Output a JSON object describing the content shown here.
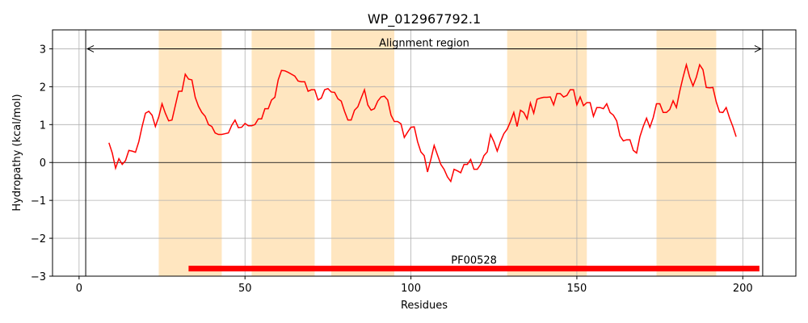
{
  "chart_data": {
    "type": "line",
    "title": "WP_012967792.1",
    "xlabel": "Residues",
    "ylabel": "Hydropathy (kcal/mol)",
    "xlim": [
      -8,
      216
    ],
    "ylim": [
      -3,
      3.5
    ],
    "x_ticks": [
      0,
      50,
      100,
      150,
      200
    ],
    "y_ticks": [
      -3,
      -2,
      -1,
      0,
      1,
      2,
      3
    ],
    "x_tick_labels": [
      "0",
      "50",
      "100",
      "150",
      "200"
    ],
    "y_tick_labels": [
      "−3",
      "−2",
      "−1",
      "0",
      "1",
      "2",
      "3"
    ],
    "grid": true,
    "colors": {
      "line": "#ff0000",
      "shade": "#ffe6c0",
      "domain_bar": "#ff0000",
      "grid": "#b0b0b0",
      "axis": "#000000"
    },
    "shaded_regions": [
      [
        24,
        43
      ],
      [
        52,
        71
      ],
      [
        76,
        95
      ],
      [
        129,
        153
      ],
      [
        174,
        192
      ]
    ],
    "alignment_region": {
      "label": "Alignment region",
      "start": 2,
      "end": 206,
      "y": 3.0
    },
    "domain": {
      "label": "PF00528",
      "start": 33,
      "end": 205,
      "y": -2.8
    },
    "series": [
      {
        "x": [
          9,
          10,
          11,
          12,
          13,
          14,
          15,
          16,
          17,
          18,
          19,
          20,
          21,
          22,
          23,
          24,
          25,
          26,
          27,
          28,
          29,
          30,
          31,
          32,
          33,
          34,
          35,
          36,
          37,
          38,
          39,
          40,
          41,
          42,
          43,
          44,
          45,
          46,
          47,
          48,
          49,
          50,
          51,
          52,
          53,
          54,
          55,
          56,
          57,
          58,
          59,
          60,
          61,
          62,
          63,
          64,
          65,
          66,
          67,
          68,
          69,
          70,
          71,
          72,
          73,
          74,
          75,
          76,
          77,
          78,
          79,
          80,
          81,
          82,
          83,
          84,
          85,
          86,
          87,
          88,
          89,
          90,
          91,
          92,
          93,
          94,
          95,
          96,
          97,
          98,
          99,
          100,
          101,
          102,
          103,
          104,
          105,
          106,
          107,
          108,
          109,
          110,
          111,
          112,
          113,
          114,
          115,
          116,
          117,
          118,
          119,
          120,
          121,
          122,
          123,
          124,
          125,
          126,
          127,
          128,
          129,
          130,
          131,
          132,
          133,
          134,
          135,
          136,
          137,
          138,
          139,
          140,
          141,
          142,
          143,
          144,
          145,
          146,
          147,
          148,
          149,
          150,
          151,
          152,
          153,
          154,
          155,
          156,
          157,
          158,
          159,
          160,
          161,
          162,
          163,
          164,
          165,
          166,
          167,
          168,
          169,
          170,
          171,
          172,
          173,
          174,
          175,
          176,
          177,
          178,
          179,
          180,
          181,
          182,
          183,
          184,
          185,
          186,
          187,
          188,
          189,
          190,
          191,
          192,
          193,
          194,
          195,
          196,
          197,
          198
        ],
        "values": [
          0.52,
          0.25,
          -0.15,
          0.1,
          -0.05,
          0.05,
          0.32,
          0.3,
          0.27,
          0.55,
          0.95,
          1.3,
          1.35,
          1.25,
          0.95,
          1.2,
          1.55,
          1.3,
          1.1,
          1.12,
          1.5,
          1.88,
          1.88,
          2.33,
          2.2,
          2.18,
          1.72,
          1.48,
          1.32,
          1.22,
          1.0,
          0.95,
          0.78,
          0.74,
          0.74,
          0.76,
          0.78,
          0.98,
          1.12,
          0.92,
          0.93,
          1.03,
          0.97,
          0.97,
          1.0,
          1.15,
          1.15,
          1.42,
          1.42,
          1.65,
          1.72,
          2.18,
          2.43,
          2.42,
          2.38,
          2.33,
          2.28,
          2.15,
          2.13,
          2.13,
          1.88,
          1.92,
          1.92,
          1.65,
          1.7,
          1.92,
          1.95,
          1.86,
          1.85,
          1.68,
          1.62,
          1.35,
          1.12,
          1.12,
          1.38,
          1.47,
          1.7,
          1.92,
          1.52,
          1.38,
          1.42,
          1.62,
          1.73,
          1.75,
          1.65,
          1.25,
          1.08,
          1.08,
          1.02,
          0.66,
          0.8,
          0.93,
          0.94,
          0.55,
          0.28,
          0.18,
          -0.25,
          0.08,
          0.45,
          0.2,
          -0.05,
          -0.18,
          -0.38,
          -0.5,
          -0.18,
          -0.22,
          -0.27,
          -0.05,
          -0.05,
          0.08,
          -0.18,
          -0.18,
          -0.05,
          0.18,
          0.28,
          0.74,
          0.55,
          0.3,
          0.55,
          0.76,
          0.88,
          1.08,
          1.32,
          0.95,
          1.38,
          1.32,
          1.15,
          1.57,
          1.3,
          1.67,
          1.7,
          1.72,
          1.72,
          1.73,
          1.52,
          1.82,
          1.82,
          1.73,
          1.77,
          1.92,
          1.92,
          1.52,
          1.73,
          1.5,
          1.58,
          1.58,
          1.22,
          1.45,
          1.45,
          1.42,
          1.55,
          1.32,
          1.25,
          1.1,
          0.7,
          0.57,
          0.6,
          0.6,
          0.32,
          0.25,
          0.68,
          0.95,
          1.17,
          0.93,
          1.18,
          1.55,
          1.55,
          1.32,
          1.32,
          1.4,
          1.63,
          1.45,
          1.88,
          2.25,
          2.58,
          2.25,
          2.02,
          2.25,
          2.58,
          2.45,
          1.98,
          1.97,
          1.98,
          1.6,
          1.33,
          1.32,
          1.45,
          1.18,
          0.95,
          0.68
        ]
      }
    ]
  }
}
